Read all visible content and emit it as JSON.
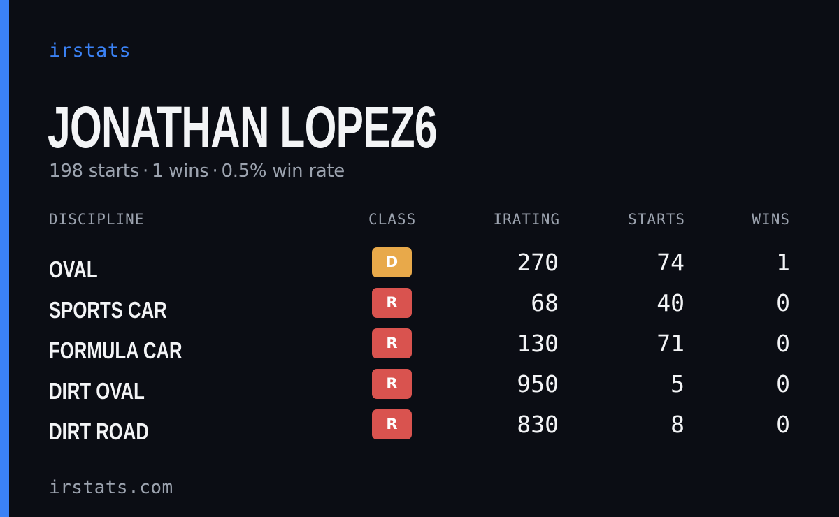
{
  "brand": "irstats",
  "driver": {
    "name": "JONATHAN LOPEZ6",
    "starts_text": "198 starts",
    "wins_text": "1 wins",
    "win_rate_text": "0.5% win rate",
    "separator": "·"
  },
  "table": {
    "headers": {
      "discipline": "DISCIPLINE",
      "class": "CLASS",
      "irating": "IRATING",
      "starts": "STARTS",
      "wins": "WINS"
    },
    "rows": [
      {
        "discipline": "OVAL",
        "class": "D",
        "class_color": "#e8a94a",
        "irating": "270",
        "starts": "74",
        "wins": "1"
      },
      {
        "discipline": "SPORTS CAR",
        "class": "R",
        "class_color": "#d9534f",
        "irating": "68",
        "starts": "40",
        "wins": "0"
      },
      {
        "discipline": "FORMULA CAR",
        "class": "R",
        "class_color": "#d9534f",
        "irating": "130",
        "starts": "71",
        "wins": "0"
      },
      {
        "discipline": "DIRT OVAL",
        "class": "R",
        "class_color": "#d9534f",
        "irating": "950",
        "starts": "5",
        "wins": "0"
      },
      {
        "discipline": "DIRT ROAD",
        "class": "R",
        "class_color": "#d9534f",
        "irating": "830",
        "starts": "8",
        "wins": "0"
      }
    ]
  },
  "footer": "irstats.com",
  "colors": {
    "background": "#0b0d14",
    "accent": "#3b82f6",
    "text": "#f3f4f6",
    "muted": "#9ca3af"
  }
}
